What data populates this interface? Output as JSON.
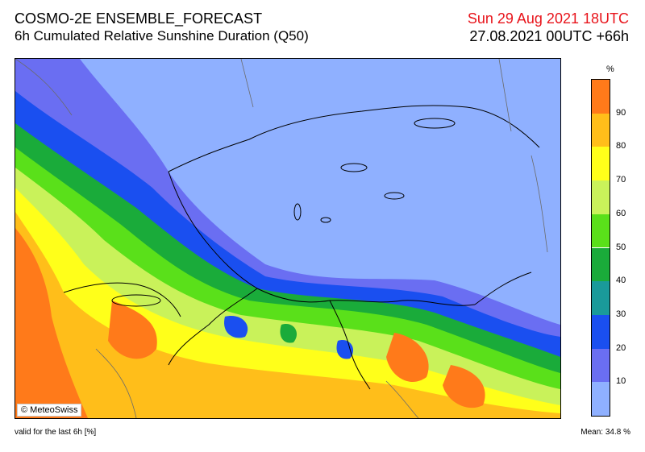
{
  "header": {
    "model_title": "COSMO-2E ENSEMBLE_FORECAST",
    "product_title": "6h Cumulated Relative Sunshine Duration (Q50)",
    "valid_date": "Sun 29 Aug 2021 18UTC",
    "run_info": "27.08.2021 00UTC +66h"
  },
  "map": {
    "copyright": "© MeteoSwiss"
  },
  "colorbar": {
    "unit": "%",
    "ticks": [
      "10",
      "20",
      "30",
      "40",
      "50",
      "60",
      "70",
      "80",
      "90"
    ],
    "colors": [
      "#8fb0ff",
      "#6a6ef2",
      "#1a4ff0",
      "#1a9a9a",
      "#1aab3a",
      "#5ae01a",
      "#c9f25a",
      "#ffff1a",
      "#ffbe1a",
      "#ff7a1a"
    ]
  },
  "footer": {
    "validity": "valid for the last 6h [%]",
    "mean": "Mean:  34.8 %"
  }
}
